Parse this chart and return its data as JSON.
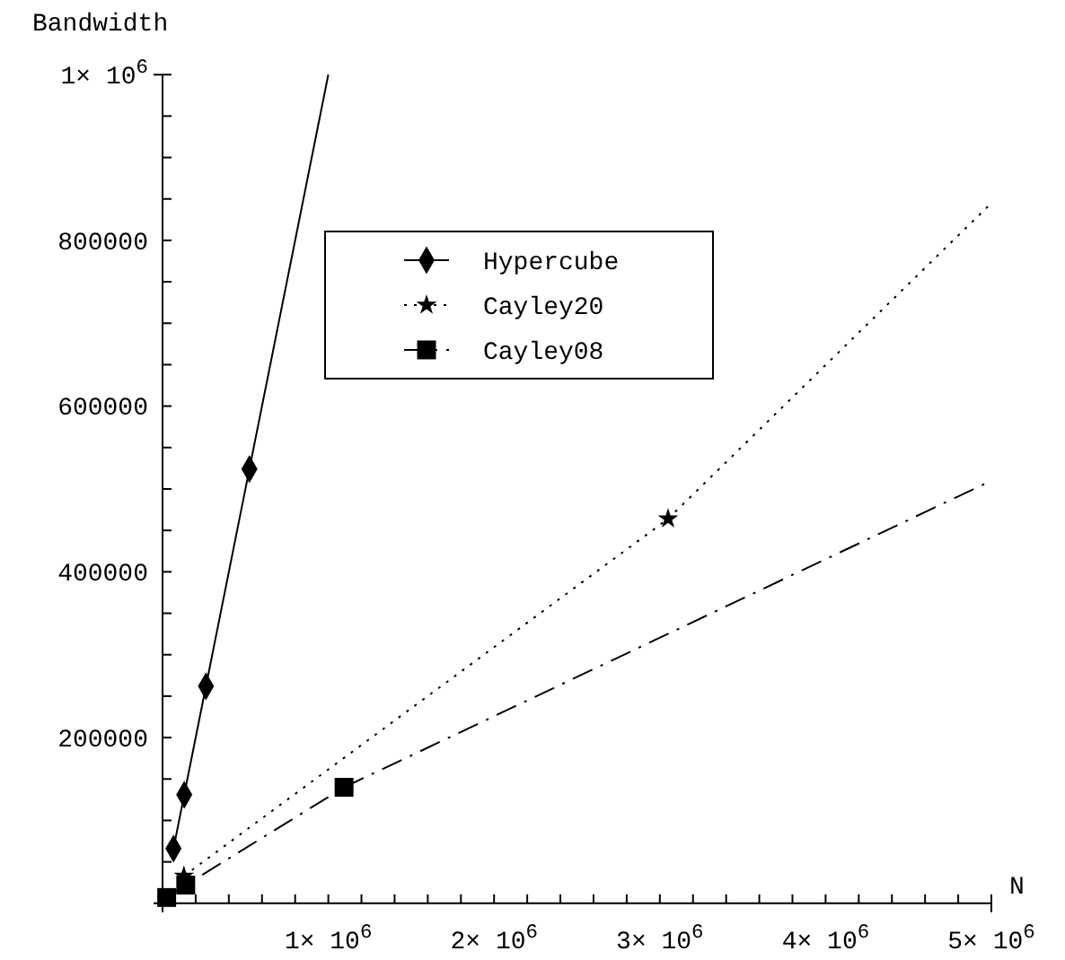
{
  "chart_data": {
    "type": "line",
    "xlabel": "N",
    "ylabel": "Bandwidth",
    "xlim": [
      0,
      5000000
    ],
    "ylim": [
      0,
      1000000
    ],
    "xticks": [
      {
        "value": 200000,
        "label": null
      },
      {
        "value": 400000,
        "label": null
      },
      {
        "value": 600000,
        "label": null
      },
      {
        "value": 800000,
        "label": null
      },
      {
        "value": 1000000,
        "label": "1× 10$^{6}$"
      },
      {
        "value": 1200000,
        "label": null
      },
      {
        "value": 1400000,
        "label": null
      },
      {
        "value": 1600000,
        "label": null
      },
      {
        "value": 1800000,
        "label": null
      },
      {
        "value": 2000000,
        "label": "2× 10$^{6}$"
      },
      {
        "value": 2200000,
        "label": null
      },
      {
        "value": 2400000,
        "label": null
      },
      {
        "value": 2600000,
        "label": null
      },
      {
        "value": 2800000,
        "label": null
      },
      {
        "value": 3000000,
        "label": "3× 10$^{6}$"
      },
      {
        "value": 3200000,
        "label": null
      },
      {
        "value": 3400000,
        "label": null
      },
      {
        "value": 3600000,
        "label": null
      },
      {
        "value": 3800000,
        "label": null
      },
      {
        "value": 4000000,
        "label": "4× 10$^{6}$"
      },
      {
        "value": 4200000,
        "label": null
      },
      {
        "value": 4400000,
        "label": null
      },
      {
        "value": 4600000,
        "label": null
      },
      {
        "value": 4800000,
        "label": null
      },
      {
        "value": 5000000,
        "label": "5× 10$^{6}$"
      }
    ],
    "yticks": [
      {
        "value": 50000,
        "label": null
      },
      {
        "value": 100000,
        "label": null
      },
      {
        "value": 150000,
        "label": null
      },
      200000,
      {
        "value": 250000,
        "label": null
      },
      {
        "value": 300000,
        "label": null
      },
      {
        "value": 350000,
        "label": null
      },
      400000,
      {
        "value": 450000,
        "label": null
      },
      {
        "value": 500000,
        "label": null
      },
      {
        "value": 550000,
        "label": null
      },
      600000,
      {
        "value": 650000,
        "label": null
      },
      {
        "value": 700000,
        "label": null
      },
      {
        "value": 750000,
        "label": null
      },
      800000,
      {
        "value": 850000,
        "label": null
      },
      {
        "value": 900000,
        "label": null
      },
      {
        "value": 950000,
        "label": null
      },
      {
        "value": 1000000,
        "label": "1× 10$^{6}$"
      }
    ],
    "grid": false,
    "legend": "top",
    "series": [
      {
        "name": "Hypercube",
        "color": "#000000",
        "marker": "diamond",
        "line_style": "solid",
        "x": [
          66000,
          131000,
          262000,
          524000
        ],
        "values": [
          66000,
          131000,
          262000,
          524000
        ]
      },
      {
        "color": "#000000",
        "marker": "none",
        "line_style": "solid",
        "x": [
          524000,
          1000000
        ],
        "values": [
          524000,
          1000000
        ]
      },
      {
        "name": "Cayley20",
        "color": "#000000",
        "marker": "star",
        "line_style": "dotted",
        "x": [
          129000,
          3050000
        ],
        "values": [
          33000,
          464000
        ]
      },
      {
        "color": "#000000",
        "marker": "none",
        "line_style": "dotted",
        "x": [
          3050000,
          5000000
        ],
        "values": [
          464000,
          845000
        ]
      },
      {
        "name": "Cayley08",
        "color": "#000000",
        "marker": "square",
        "line_style": "dashdot",
        "x": [
          25000,
          140000,
          1095000
        ],
        "values": [
          7000,
          22000,
          140000
        ]
      },
      {
        "color": "#000000",
        "marker": "none",
        "line_style": "dashdot",
        "x": [
          1095000,
          5000000
        ],
        "values": [
          140000,
          510000
        ]
      }
    ]
  }
}
